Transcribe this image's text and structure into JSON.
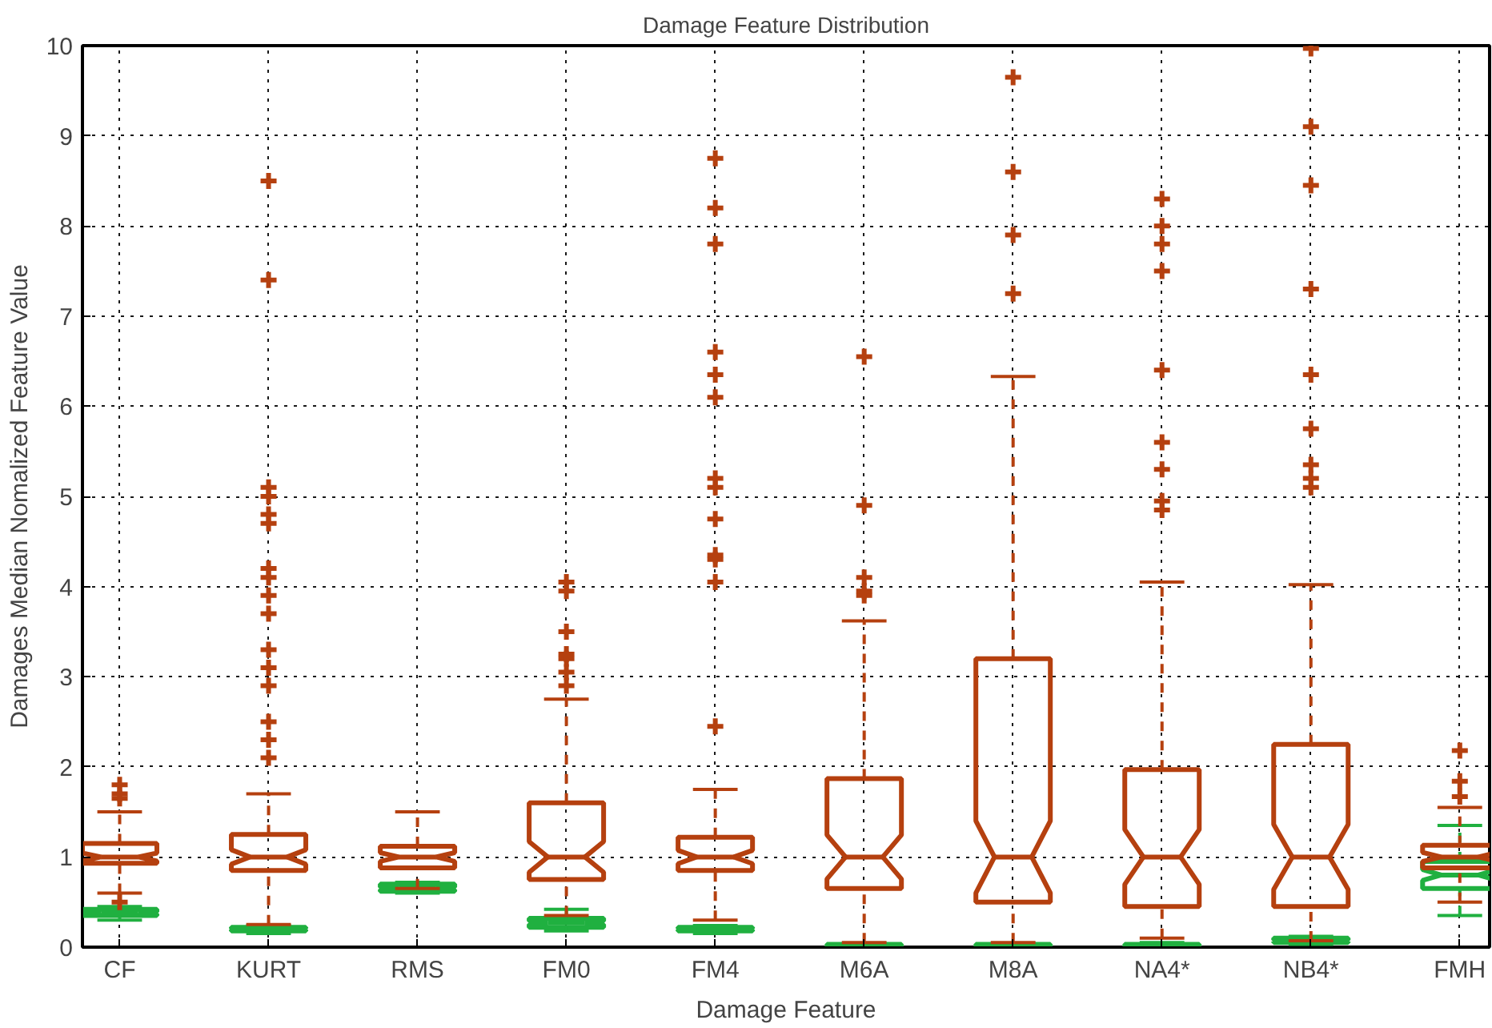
{
  "chart_data": {
    "type": "box",
    "title": "Damage Feature Distribution",
    "xlabel": "Damage Feature",
    "ylabel": "Damages Median Nomalized Feature Value",
    "categories": [
      "CF",
      "KURT",
      "RMS",
      "FM0",
      "FM4",
      "M6A",
      "M8A",
      "NA4*",
      "NB4*",
      "FMH"
    ],
    "ylim": [
      0,
      10
    ],
    "yticks": [
      0,
      1,
      2,
      3,
      4,
      5,
      6,
      7,
      8,
      9,
      10
    ],
    "grid": true,
    "line_style": "dashed",
    "marker": "cross",
    "series": [
      {
        "color": "#20b040",
        "boxes": [
          {
            "low": 0.3,
            "q1": 0.35,
            "median": 0.38,
            "q3": 0.42,
            "high": 0.45
          },
          {
            "low": 0.15,
            "q1": 0.18,
            "median": 0.2,
            "q3": 0.22,
            "high": 0.24
          },
          {
            "low": 0.6,
            "q1": 0.62,
            "median": 0.65,
            "q3": 0.7,
            "high": 0.72
          },
          {
            "low": 0.18,
            "q1": 0.22,
            "median": 0.27,
            "q3": 0.32,
            "high": 0.42
          },
          {
            "low": 0.15,
            "q1": 0.18,
            "median": 0.2,
            "q3": 0.22,
            "high": 0.24
          },
          {
            "low": 0.0,
            "q1": 0.01,
            "median": 0.02,
            "q3": 0.03,
            "high": 0.04
          },
          {
            "low": 0.0,
            "q1": 0.01,
            "median": 0.02,
            "q3": 0.03,
            "high": 0.04
          },
          {
            "low": 0.0,
            "q1": 0.01,
            "median": 0.02,
            "q3": 0.03,
            "high": 0.05
          },
          {
            "low": 0.03,
            "q1": 0.05,
            "median": 0.07,
            "q3": 0.1,
            "high": 0.12
          },
          {
            "low": 0.35,
            "q1": 0.65,
            "median": 0.8,
            "q3": 0.95,
            "high": 1.35
          }
        ]
      },
      {
        "color": "#b5400f",
        "boxes": [
          {
            "low": 0.6,
            "q1": 0.93,
            "median": 1.0,
            "q3": 1.15,
            "high": 1.5,
            "outliers": [
              1.65,
              1.7,
              1.8,
              0.5
            ]
          },
          {
            "low": 0.25,
            "q1": 0.85,
            "median": 1.0,
            "q3": 1.25,
            "high": 1.7,
            "outliers": [
              2.1,
              2.3,
              2.5,
              2.9,
              3.1,
              3.3,
              3.7,
              3.9,
              4.1,
              4.2,
              4.7,
              4.8,
              5.0,
              5.1,
              7.4,
              8.5
            ]
          },
          {
            "low": 0.65,
            "q1": 0.88,
            "median": 1.0,
            "q3": 1.12,
            "high": 1.5
          },
          {
            "low": 0.35,
            "q1": 0.75,
            "median": 1.0,
            "q3": 1.6,
            "high": 2.75,
            "outliers": [
              2.9,
              3.05,
              3.2,
              3.25,
              3.5,
              3.95,
              4.05
            ]
          },
          {
            "low": 0.3,
            "q1": 0.85,
            "median": 1.0,
            "q3": 1.22,
            "high": 1.75,
            "outliers": [
              2.45,
              4.05,
              4.3,
              4.35,
              4.75,
              5.1,
              5.2,
              6.1,
              6.35,
              6.6,
              7.8,
              8.2,
              8.75
            ]
          },
          {
            "low": 0.05,
            "q1": 0.65,
            "median": 1.0,
            "q3": 1.87,
            "high": 3.62,
            "outliers": [
              3.9,
              3.95,
              4.1,
              4.9,
              6.55
            ]
          },
          {
            "low": 0.05,
            "q1": 0.5,
            "median": 1.0,
            "q3": 3.2,
            "high": 6.33,
            "outliers": [
              7.25,
              7.9,
              8.6,
              9.65
            ]
          },
          {
            "low": 0.1,
            "q1": 0.45,
            "median": 1.0,
            "q3": 1.97,
            "high": 4.05,
            "outliers": [
              4.85,
              4.95,
              5.3,
              5.6,
              6.4,
              7.5,
              7.8,
              8.0,
              8.3
            ]
          },
          {
            "low": 0.07,
            "q1": 0.45,
            "median": 1.0,
            "q3": 2.25,
            "high": 4.02,
            "outliers": [
              5.1,
              5.2,
              5.35,
              5.75,
              6.35,
              7.3,
              8.45,
              9.1,
              9.97
            ]
          },
          {
            "low": 0.5,
            "q1": 0.88,
            "median": 1.0,
            "q3": 1.13,
            "high": 1.55,
            "outliers": [
              1.67,
              1.84,
              2.18
            ]
          }
        ]
      }
    ]
  }
}
